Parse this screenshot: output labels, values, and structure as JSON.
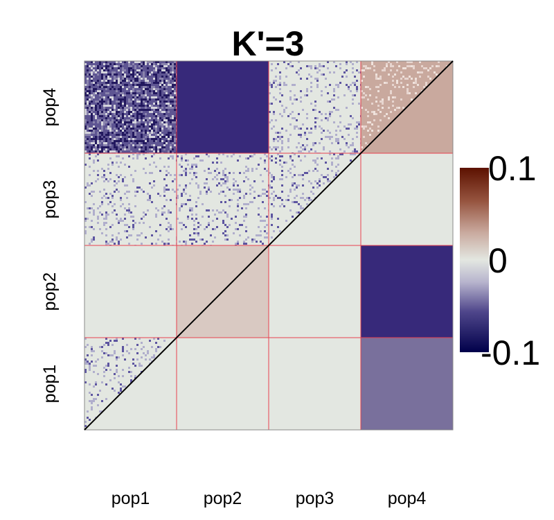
{
  "chart_data": {
    "type": "heatmap",
    "title": "K'=3",
    "x_labels": [
      "pop1",
      "pop2",
      "pop3",
      "pop4"
    ],
    "y_labels": [
      "pop1",
      "pop2",
      "pop3",
      "pop4"
    ],
    "value_range": [
      -0.1,
      0.1
    ],
    "grid": true,
    "grid_color": "#e8414f",
    "diagonal_line": true,
    "colorbar": {
      "placement": "right",
      "ticks": [
        {
          "value": 0.1,
          "label": "0.1"
        },
        {
          "value": 0,
          "label": "0"
        },
        {
          "value": -0.1,
          "label": "-0.1"
        }
      ],
      "colors": {
        "low": "#00004a",
        "mid": "#e3e7e1",
        "high": "#5c1100"
      }
    },
    "upper_triangle_blocks": [
      {
        "row": "pop4",
        "col": "pop4",
        "value": 0.03,
        "color": "#c9a99e"
      },
      {
        "row": "pop3",
        "col": "pop3",
        "value": 0.0,
        "color": "#e3e7e1"
      },
      {
        "row": "pop3",
        "col": "pop4",
        "value": 0.0,
        "color": "#e3e7e1"
      },
      {
        "row": "pop2",
        "col": "pop2",
        "value": 0.01,
        "color": "#d9c9c2"
      },
      {
        "row": "pop2",
        "col": "pop3",
        "value": 0.0,
        "color": "#e3e7e1"
      },
      {
        "row": "pop2",
        "col": "pop4",
        "value": -0.08,
        "color": "#37297a"
      },
      {
        "row": "pop1",
        "col": "pop1",
        "value": 0.0,
        "color": "#e3e7e1"
      },
      {
        "row": "pop1",
        "col": "pop2",
        "value": 0.0,
        "color": "#e3e7e1"
      },
      {
        "row": "pop1",
        "col": "pop3",
        "value": 0.0,
        "color": "#e3e7e1"
      },
      {
        "row": "pop1",
        "col": "pop4",
        "value": -0.05,
        "color": "#79709c"
      }
    ],
    "lower_triangle_blocks": [
      {
        "row": "pop4",
        "col": "pop1",
        "value": -0.06,
        "texture": "dense-noise",
        "color": "#5e5592"
      },
      {
        "row": "pop4",
        "col": "pop2",
        "value": -0.08,
        "texture": "solid",
        "color": "#37297a"
      },
      {
        "row": "pop4",
        "col": "pop3",
        "value": -0.005,
        "texture": "light-noise",
        "color": "#e3e7e1"
      },
      {
        "row": "pop4",
        "col": "pop4",
        "value": 0.03,
        "texture": "light-noise",
        "color": "#c9a99e"
      },
      {
        "row": "pop3",
        "col": "pop1",
        "value": -0.005,
        "texture": "light-noise",
        "color": "#e3e7e1"
      },
      {
        "row": "pop3",
        "col": "pop2",
        "value": -0.005,
        "texture": "light-noise",
        "color": "#e3e7e1"
      },
      {
        "row": "pop3",
        "col": "pop3",
        "value": -0.005,
        "texture": "light-noise",
        "color": "#e3e7e1"
      },
      {
        "row": "pop2",
        "col": "pop1",
        "value": 0.0,
        "texture": "solid",
        "color": "#e3e7e1"
      },
      {
        "row": "pop2",
        "col": "pop2",
        "value": 0.01,
        "texture": "solid",
        "color": "#d9c9c2"
      },
      {
        "row": "pop1",
        "col": "pop1",
        "value": -0.002,
        "texture": "light-noise",
        "color": "#e3e7e1"
      }
    ]
  }
}
